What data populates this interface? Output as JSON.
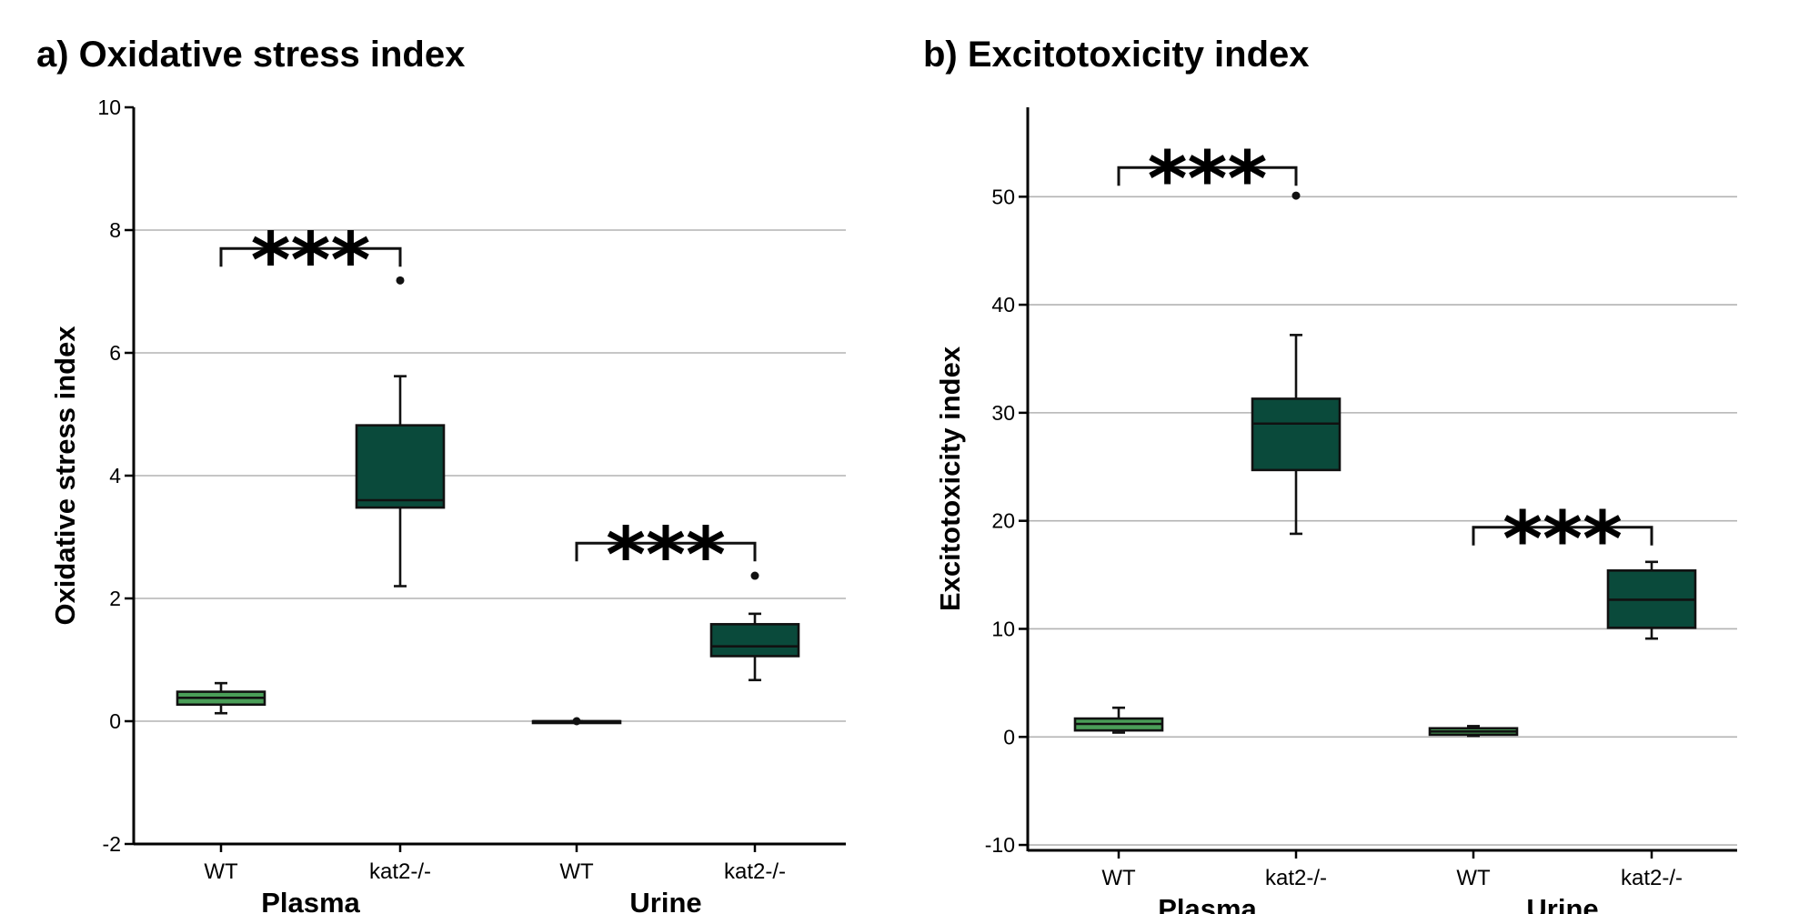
{
  "panels": [
    {
      "title": "a) Oxidative stress index",
      "chart_data": {
        "type": "box",
        "title": "a) Oxidative stress index",
        "ylabel": "Oxidative stress index",
        "xlabel": "",
        "ylim": [
          -2,
          10
        ],
        "yticks": [
          -2,
          0,
          2,
          4,
          6,
          8,
          10
        ],
        "grid_lines": [
          0,
          2,
          4,
          6,
          8
        ],
        "groups": [
          "Plasma",
          "Urine"
        ],
        "categories": [
          "WT",
          "kat2-/-",
          "WT",
          "kat2-/-"
        ],
        "colors": {
          "WT": "#4a9e58",
          "kat2-/-": "#0a4a3b"
        },
        "boxes": [
          {
            "category": "WT",
            "group": "Plasma",
            "whisker_low": 0.13,
            "q1": 0.27,
            "median": 0.38,
            "q3": 0.48,
            "whisker_high": 0.62,
            "outliers": []
          },
          {
            "category": "kat2-/-",
            "group": "Plasma",
            "whisker_low": 2.2,
            "q1": 3.48,
            "median": 3.6,
            "q3": 4.82,
            "whisker_high": 5.62,
            "outliers": [
              7.18
            ]
          },
          {
            "category": "WT",
            "group": "Urine",
            "whisker_low": 0.0,
            "q1": 0.0,
            "median": 0.0,
            "q3": 0.0,
            "whisker_high": 0.0,
            "outliers": [
              0.0
            ]
          },
          {
            "category": "kat2-/-",
            "group": "Urine",
            "whisker_low": 0.67,
            "q1": 1.06,
            "median": 1.22,
            "q3": 1.58,
            "whisker_high": 1.75,
            "outliers": [
              2.37
            ]
          }
        ],
        "significance": [
          {
            "from": 0,
            "to": 1,
            "label": "***",
            "bracket_y": 7.7
          },
          {
            "from": 2,
            "to": 3,
            "label": "***",
            "bracket_y": 2.9
          }
        ]
      }
    },
    {
      "title": "b) Excitotoxicity index",
      "chart_data": {
        "type": "box",
        "title": "b) Excitotoxicity index",
        "ylabel": "Excitotoxicity index",
        "xlabel": "",
        "ylim": [
          -10.5,
          60
        ],
        "yticks": [
          -10,
          0,
          10,
          20,
          30,
          40,
          50
        ],
        "grid_lines": [
          -10,
          0,
          10,
          20,
          30,
          40,
          50
        ],
        "groups": [
          "Plasma",
          "Urine"
        ],
        "categories": [
          "WT",
          "kat2-/-",
          "WT",
          "kat2-/-"
        ],
        "colors": {
          "WT": "#4a9e58",
          "kat2-/-": "#0a4a3b"
        },
        "boxes": [
          {
            "category": "WT",
            "group": "Plasma",
            "whisker_low": 0.4,
            "q1": 0.6,
            "median": 1.2,
            "q3": 1.7,
            "whisker_high": 2.7,
            "outliers": []
          },
          {
            "category": "kat2-/-",
            "group": "Plasma",
            "whisker_low": 18.8,
            "q1": 24.7,
            "median": 29.0,
            "q3": 31.3,
            "whisker_high": 37.2,
            "outliers": [
              50.1
            ]
          },
          {
            "category": "WT",
            "group": "Urine",
            "whisker_low": 0.1,
            "q1": 0.2,
            "median": 0.5,
            "q3": 0.8,
            "whisker_high": 1.0,
            "outliers": []
          },
          {
            "category": "kat2-/-",
            "group": "Urine",
            "whisker_low": 9.1,
            "q1": 10.1,
            "median": 12.7,
            "q3": 15.4,
            "whisker_high": 16.2,
            "outliers": []
          }
        ],
        "significance": [
          {
            "from": 0,
            "to": 1,
            "label": "***",
            "bracket_y": 52.7
          },
          {
            "from": 2,
            "to": 3,
            "label": "***",
            "bracket_y": 19.4
          }
        ]
      }
    }
  ]
}
